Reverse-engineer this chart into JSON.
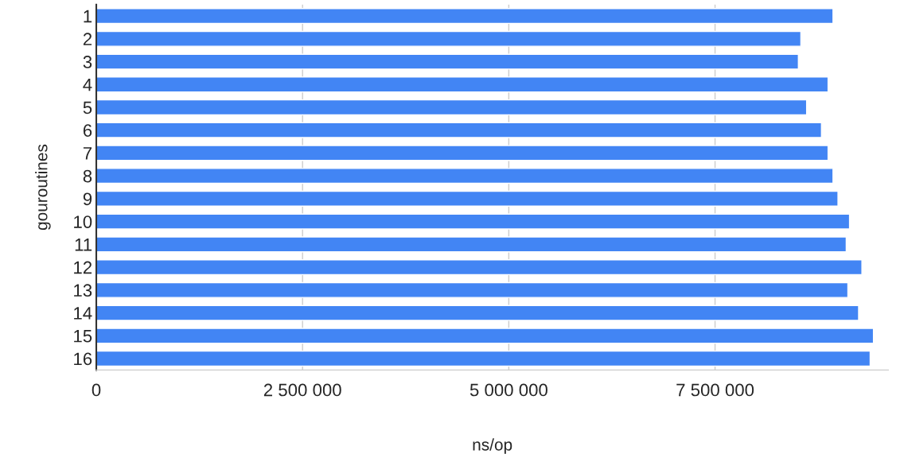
{
  "chart_data": {
    "type": "bar",
    "orientation": "horizontal",
    "xlabel": "ns/op",
    "ylabel": "gouroutines",
    "categories": [
      "1",
      "2",
      "3",
      "4",
      "5",
      "6",
      "7",
      "8",
      "9",
      "10",
      "11",
      "12",
      "13",
      "14",
      "15",
      "16"
    ],
    "values": [
      8930000,
      8540000,
      8510000,
      8870000,
      8610000,
      8790000,
      8870000,
      8930000,
      8990000,
      9130000,
      9090000,
      9280000,
      9110000,
      9240000,
      9420000,
      9380000
    ],
    "color": "#4285f4",
    "xlim": [
      0,
      9600000
    ],
    "xticks": [
      0,
      {
        "value": 2500000,
        "label": "2 500 000"
      },
      {
        "value": 5000000,
        "label": "5 000 000"
      },
      {
        "value": 7500000,
        "label": "7 500 000"
      }
    ],
    "grid": "x"
  }
}
